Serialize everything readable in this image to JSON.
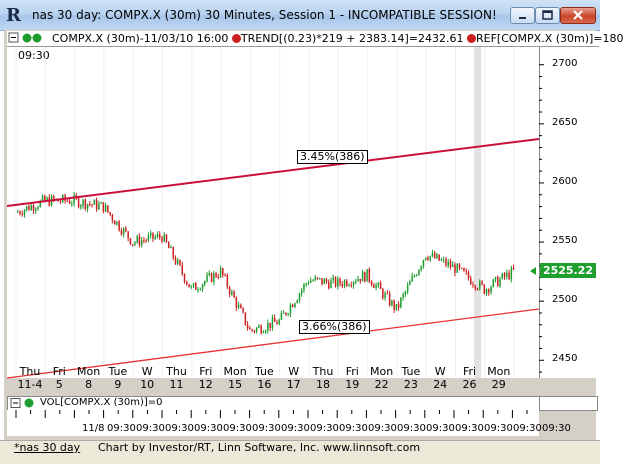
{
  "window": {
    "title": "nas 30 day: COMPX.X (30m) 30 Minutes, Session 1 - INCOMPATIBLE SESSION!",
    "minimize_icon": "minimize-icon",
    "maximize_icon": "maximize-icon",
    "close_icon": "close-icon"
  },
  "info_bar": {
    "symbol_text": "COMPX.X (30m)-11/03/10 16:00",
    "trend_text": "TREND[(0.23)*219 + 2383.14]=2432.61",
    "ref_text": "REF[COMPX.X (30m)]=180",
    "dot_colors": [
      "#1e9c2f",
      "#cc2020"
    ]
  },
  "chart": {
    "time_label": "09:30",
    "price_tag": "2525.22",
    "upper_trend_label": "3.45%(386)",
    "lower_trend_label": "3.66%(386)",
    "colors": {
      "up": "#1e9c2f",
      "down": "#cc2020",
      "trend_upper": "#c8103a",
      "trend_lower": "#e83030",
      "price_tag": "#1f9f2e"
    }
  },
  "chart_data": {
    "type": "candlestick",
    "y_ticks": [
      2700,
      2650,
      2600,
      2550,
      2500,
      2450
    ],
    "ylim": [
      2435,
      2715
    ],
    "current_price": 2525.22,
    "dates": [
      {
        "dow": "Thu",
        "day": "11-4"
      },
      {
        "dow": "Fri",
        "day": "5"
      },
      {
        "dow": "Mon",
        "day": "8"
      },
      {
        "dow": "Tue",
        "day": "9"
      },
      {
        "dow": "W",
        "day": "10"
      },
      {
        "dow": "Thu",
        "day": "11"
      },
      {
        "dow": "Fri",
        "day": "12"
      },
      {
        "dow": "Mon",
        "day": "15"
      },
      {
        "dow": "Tue",
        "day": "16"
      },
      {
        "dow": "W",
        "day": "17"
      },
      {
        "dow": "Thu",
        "day": "18"
      },
      {
        "dow": "Fri",
        "day": "19"
      },
      {
        "dow": "Mon",
        "day": "22"
      },
      {
        "dow": "Tue",
        "day": "23"
      },
      {
        "dow": "W",
        "day": "24"
      },
      {
        "dow": "Fri",
        "day": "26"
      },
      {
        "dow": "Mon",
        "day": "29"
      }
    ],
    "daily_closes": [
      2575,
      2585,
      2585,
      2580,
      2550,
      2555,
      2510,
      2525,
      2475,
      2483,
      2518,
      2515,
      2522,
      2493,
      2540,
      2528,
      2510,
      2525
    ]
  },
  "volume": {
    "label": "VOL[COMPX.X (30m)]=0"
  },
  "time_axis": {
    "first": "11/8",
    "labels": [
      "09:30",
      "09:30",
      "09:30",
      "09:30",
      "09:30",
      "09:30",
      "09:30",
      "09:30",
      "09:30",
      "09:30",
      "09:30",
      "09:30",
      "09:30",
      "09:30",
      "09:30",
      "09:30"
    ]
  },
  "footer": {
    "tab": "*nas 30 day",
    "credit": "Chart by Investor/RT, Linn Software, Inc. www.linnsoft.com"
  }
}
